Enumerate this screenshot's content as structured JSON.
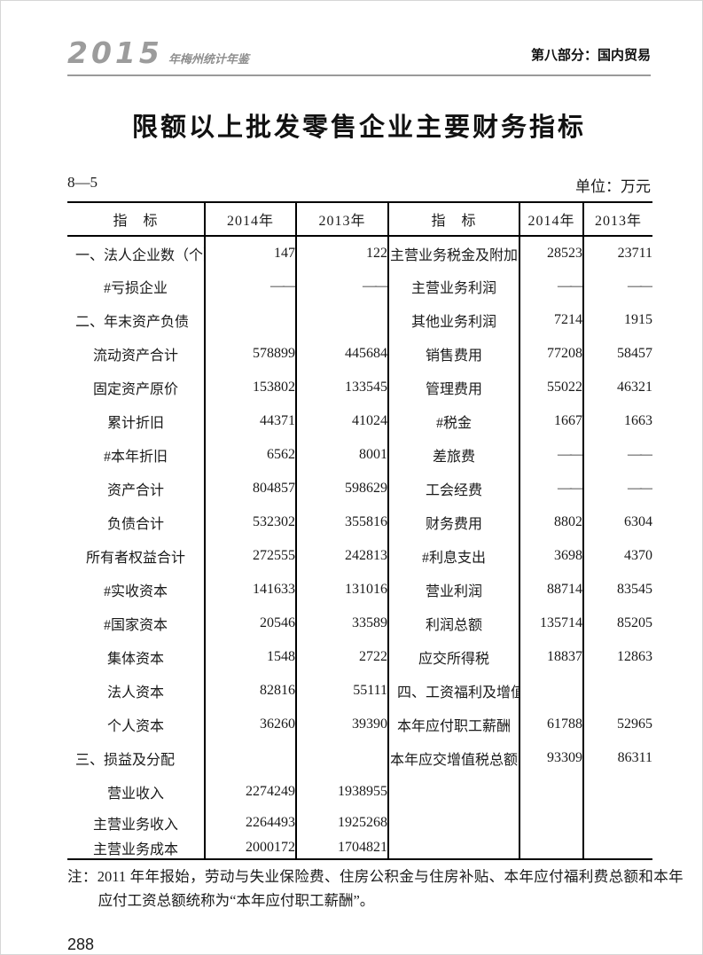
{
  "header": {
    "logo_year": "2015",
    "logo_title": "年梅州统计年鉴",
    "section": "第八部分：国内贸易"
  },
  "title": "限额以上批发零售企业主要财务指标",
  "table": {
    "number": "8—5",
    "unit": "单位：万元",
    "columns": [
      "指　标",
      "2014年",
      "2013年",
      "指　标",
      "2014年",
      "2013年"
    ],
    "rows": [
      {
        "left": {
          "label": "一、法人企业数（个）",
          "type": "section",
          "y2014": "147",
          "y2013": "122"
        },
        "right": {
          "label": "主营业务税金及附加",
          "type": "item",
          "y2014": "28523",
          "y2013": "23711"
        }
      },
      {
        "left": {
          "label": "#亏损企业",
          "type": "item",
          "y2014": "——",
          "y2013": "——"
        },
        "right": {
          "label": "主营业务利润",
          "type": "item",
          "y2014": "——",
          "y2013": "——"
        }
      },
      {
        "left": {
          "label": "二、年末资产负债",
          "type": "section",
          "y2014": "",
          "y2013": ""
        },
        "right": {
          "label": "其他业务利润",
          "type": "item",
          "y2014": "7214",
          "y2013": "1915"
        }
      },
      {
        "left": {
          "label": "流动资产合计",
          "type": "item",
          "y2014": "578899",
          "y2013": "445684"
        },
        "right": {
          "label": "销售费用",
          "type": "item",
          "y2014": "77208",
          "y2013": "58457"
        }
      },
      {
        "left": {
          "label": "固定资产原价",
          "type": "item",
          "y2014": "153802",
          "y2013": "133545"
        },
        "right": {
          "label": "管理费用",
          "type": "item",
          "y2014": "55022",
          "y2013": "46321"
        }
      },
      {
        "left": {
          "label": "累计折旧",
          "type": "item",
          "y2014": "44371",
          "y2013": "41024"
        },
        "right": {
          "label": "#税金",
          "type": "item",
          "y2014": "1667",
          "y2013": "1663"
        }
      },
      {
        "left": {
          "label": "#本年折旧",
          "type": "item",
          "y2014": "6562",
          "y2013": "8001"
        },
        "right": {
          "label": "差旅费",
          "type": "item",
          "y2014": "——",
          "y2013": "——"
        }
      },
      {
        "left": {
          "label": "资产合计",
          "type": "item",
          "y2014": "804857",
          "y2013": "598629"
        },
        "right": {
          "label": "工会经费",
          "type": "item",
          "y2014": "——",
          "y2013": "——"
        }
      },
      {
        "left": {
          "label": "负债合计",
          "type": "item",
          "y2014": "532302",
          "y2013": "355816"
        },
        "right": {
          "label": "财务费用",
          "type": "item",
          "y2014": "8802",
          "y2013": "6304"
        }
      },
      {
        "left": {
          "label": "所有者权益合计",
          "type": "item",
          "y2014": "272555",
          "y2013": "242813"
        },
        "right": {
          "label": "#利息支出",
          "type": "item",
          "y2014": "3698",
          "y2013": "4370"
        }
      },
      {
        "left": {
          "label": "#实收资本",
          "type": "item",
          "y2014": "141633",
          "y2013": "131016"
        },
        "right": {
          "label": "营业利润",
          "type": "item",
          "y2014": "88714",
          "y2013": "83545"
        }
      },
      {
        "left": {
          "label": "#国家资本",
          "type": "item",
          "y2014": "20546",
          "y2013": "33589"
        },
        "right": {
          "label": "利润总额",
          "type": "item",
          "y2014": "135714",
          "y2013": "85205"
        }
      },
      {
        "left": {
          "label": "集体资本",
          "type": "item",
          "y2014": "1548",
          "y2013": "2722"
        },
        "right": {
          "label": "应交所得税",
          "type": "item",
          "y2014": "18837",
          "y2013": "12863"
        }
      },
      {
        "left": {
          "label": "法人资本",
          "type": "item",
          "y2014": "82816",
          "y2013": "55111"
        },
        "right": {
          "label": "四、工资福利及增值税",
          "type": "section",
          "y2014": "",
          "y2013": ""
        }
      },
      {
        "left": {
          "label": "个人资本",
          "type": "item",
          "y2014": "36260",
          "y2013": "39390"
        },
        "right": {
          "label": "本年应付职工薪酬",
          "type": "item",
          "y2014": "61788",
          "y2013": "52965"
        }
      },
      {
        "left": {
          "label": "三、损益及分配",
          "type": "section",
          "y2014": "",
          "y2013": ""
        },
        "right": {
          "label": "本年应交增值税总额",
          "type": "item",
          "y2014": "93309",
          "y2013": "86311"
        }
      },
      {
        "left": {
          "label": "营业收入",
          "type": "item",
          "y2014": "2274249",
          "y2013": "1938955"
        },
        "right": {
          "label": "",
          "type": "item",
          "y2014": "",
          "y2013": ""
        }
      },
      {
        "left": {
          "label": "主营业务收入",
          "type": "item",
          "y2014": "2264493",
          "y2013": "1925268"
        },
        "right": {
          "label": "",
          "type": "item",
          "y2014": "",
          "y2013": ""
        }
      },
      {
        "left": {
          "label": "主营业务成本",
          "type": "item",
          "y2014": "2000172",
          "y2013": "1704821"
        },
        "right": {
          "label": "",
          "type": "item",
          "y2014": "",
          "y2013": ""
        }
      }
    ]
  },
  "note": "注：2011 年年报始，劳动与失业保险费、住房公积金与住房补贴、本年应付福利费总额和本年应付工资总额统称为“本年应付职工薪酬”。",
  "page_number": "288"
}
